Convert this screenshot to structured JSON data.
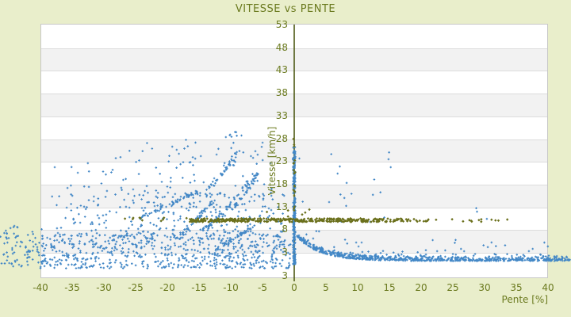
{
  "chart_data": {
    "type": "scatter",
    "title": "VITESSE vs PENTE",
    "xlabel": "Pente [%]",
    "ylabel": "Vitesse [km/h]",
    "xlim": [
      -40,
      40
    ],
    "ylim": [
      -2.75,
      53
    ],
    "grid": "horizontal-bands-alternating",
    "legend": "none",
    "x_ticks": [
      -40,
      -35,
      -30,
      -25,
      -20,
      -15,
      -10,
      -5,
      0,
      5,
      10,
      15,
      20,
      25,
      30,
      35,
      40
    ],
    "y_ticks": [
      53,
      48,
      43,
      38,
      33,
      28,
      23,
      18,
      13,
      8,
      3
    ],
    "y_axis_bottom_label": "3",
    "colors": {
      "background": "#e9eecb",
      "plot_background": "#ffffff",
      "band_alt": "#f2f2f2",
      "gridline": "#dcdcdc",
      "axis_line": "#4e5a15",
      "text": "#6b7a1f",
      "series_blue": "#4287c6",
      "series_olive": "#6b701c"
    },
    "series": [
      {
        "name": "vitesse-points-bleus",
        "color": "#4287c6",
        "marker": "plus",
        "description": "dense cloud for negative slopes (3-30 km/h with climbing track streaks), dense vertical column at pente=0, tight decaying band 7->1 km/h for positive slopes",
        "clusters": [
          {
            "mode": "cloud",
            "count": 620,
            "x": [
              -40,
              -0.6
            ],
            "y": [
              -0.6,
              6.8
            ],
            "ypow": 1.15
          },
          {
            "mode": "cloud",
            "count": 85,
            "x": [
              -46.5,
              -39.5
            ],
            "y": [
              -0.2,
              8.8
            ],
            "ypow": 1.1
          },
          {
            "mode": "cloud",
            "count": 280,
            "x": [
              -38,
              -1.5
            ],
            "xpow": 0.85,
            "y": [
              6.5,
              16
            ],
            "ypow": 1.5
          },
          {
            "mode": "cloud",
            "count": 95,
            "x": [
              -38.5,
              -3
            ],
            "xpow": 0.8,
            "y": [
              15,
              24
            ],
            "ypow": 1.25
          },
          {
            "mode": "cloud",
            "count": 24,
            "x": [
              -27,
              -4.5
            ],
            "y": [
              23,
              28.5
            ]
          },
          {
            "mode": "cloud",
            "count": 8,
            "x": [
              -10.5,
              -8.3
            ],
            "y": [
              27,
              29.6
            ]
          },
          {
            "mode": "streak",
            "count": 48,
            "from": [
              -25,
              10
            ],
            "to": [
              -15,
              16.5
            ],
            "jitter": 0.3
          },
          {
            "mode": "streak",
            "count": 40,
            "from": [
              -18,
              6.5
            ],
            "to": [
              -12.5,
              14.5
            ],
            "jitter": 0.25
          },
          {
            "mode": "streak",
            "count": 55,
            "from": [
              -14.5,
              8
            ],
            "to": [
              -7,
              19
            ],
            "jitter": 0.3,
            "curve": 1.3
          },
          {
            "mode": "streak",
            "count": 38,
            "from": [
              -9.5,
              13
            ],
            "to": [
              -5.3,
              21.5
            ],
            "jitter": 0.25,
            "curve": 1.2
          },
          {
            "mode": "streak",
            "count": 42,
            "from": [
              -13.5,
              17
            ],
            "to": [
              -8.5,
              26
            ],
            "jitter": 0.3,
            "curve": 1.2
          },
          {
            "mode": "streak",
            "count": 45,
            "from": [
              -13.5,
              2.5
            ],
            "to": [
              -6.5,
              8.5
            ],
            "jitter": 0.35
          },
          {
            "mode": "cloud",
            "count": 250,
            "x": [
              -0.2,
              0.2
            ],
            "y": [
              0.3,
              26.2
            ],
            "ypow": 1.3
          },
          {
            "mode": "decay",
            "count": 700,
            "x": [
              0.4,
              43.5
            ],
            "xpow": 1.15,
            "base": 1.25,
            "amp": 6.0,
            "tau": 3.6,
            "up": 1.0,
            "down": 0.25
          },
          {
            "mode": "decay",
            "count": 55,
            "x": [
              1,
              41
            ],
            "base": 2.3,
            "amp": 6.0,
            "tau": 3.6,
            "up": 3.4,
            "down": 0
          },
          {
            "mode": "cloud",
            "count": 20,
            "x": [
              0.6,
              15.5
            ],
            "y": [
              9,
              27
            ]
          },
          {
            "mode": "cloud",
            "count": 3,
            "x": [
              26,
              36
            ],
            "y": [
              10,
              13
            ]
          }
        ]
      },
      {
        "name": "serie-points-olive",
        "color": "#6b701c",
        "marker": "diamond",
        "description": "horizontal band near 10 km/h from pente -17 to +21 (sparser to +34) plus dots on the pente=0 axis from 12 to 28 km/h",
        "clusters": [
          {
            "mode": "cloud",
            "count": 340,
            "x": [
              -16.5,
              13.5
            ],
            "y": [
              9.6,
              10.4
            ]
          },
          {
            "mode": "cloud",
            "count": 42,
            "x": [
              13.5,
              21.5
            ],
            "y": [
              9.6,
              10.35
            ]
          },
          {
            "mode": "cloud",
            "count": 13,
            "x": [
              21.5,
              34.5
            ],
            "y": [
              9.65,
              10.3
            ]
          },
          {
            "mode": "cloud",
            "count": 10,
            "x": [
              -29,
              -16.5
            ],
            "y": [
              9.8,
              10.6
            ]
          },
          {
            "mode": "cloud",
            "count": 18,
            "x": [
              -0.15,
              0.15
            ],
            "y": [
              12,
              28
            ]
          },
          {
            "mode": "cloud",
            "count": 6,
            "x": [
              -11,
              4
            ],
            "y": [
              10.7,
              12.4
            ]
          }
        ]
      }
    ]
  }
}
